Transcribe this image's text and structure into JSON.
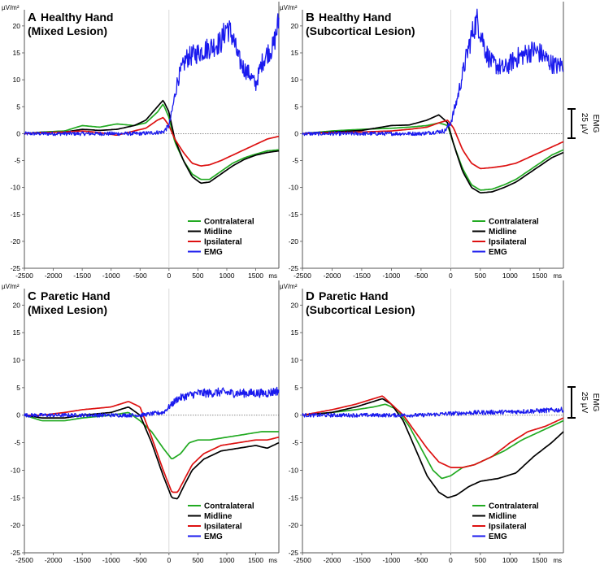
{
  "chart_data": [
    {
      "type": "line",
      "panel": "A",
      "title_line1": "Healthy Hand",
      "title_line2": "(Mixed Lesion)",
      "y_unit": "µV/m²",
      "x_unit": "ms",
      "xlim": [
        -2500,
        1900
      ],
      "ylim": [
        -25,
        23
      ],
      "x_ticks": [
        -2500,
        -2000,
        -1500,
        -1000,
        -500,
        0,
        500,
        1000,
        1500
      ],
      "y_ticks": [
        20,
        15,
        10,
        5,
        0,
        -5,
        -10,
        -15,
        -20,
        -25
      ],
      "series": [
        {
          "name": "Contralateral",
          "color": "#22aa22",
          "x": [
            -2500,
            -2200,
            -1800,
            -1500,
            -1200,
            -900,
            -600,
            -400,
            -200,
            -100,
            0,
            100,
            250,
            400,
            550,
            700,
            900,
            1100,
            1300,
            1500,
            1700,
            1900
          ],
          "y": [
            0,
            0.3,
            0.5,
            1.5,
            1.2,
            1.8,
            1.5,
            2,
            4,
            5.5,
            3,
            -1.5,
            -5,
            -7.5,
            -8.5,
            -8.5,
            -7,
            -5.5,
            -4.5,
            -3.8,
            -3.2,
            -3
          ]
        },
        {
          "name": "Midline",
          "color": "#000000",
          "x": [
            -2500,
            -2200,
            -1800,
            -1500,
            -1200,
            -900,
            -600,
            -400,
            -200,
            -100,
            0,
            100,
            250,
            400,
            550,
            700,
            900,
            1100,
            1300,
            1500,
            1700,
            1900
          ],
          "y": [
            0,
            0.2,
            0.3,
            0.8,
            0.6,
            0.8,
            1.5,
            2.5,
            5,
            6.2,
            4,
            -1,
            -5,
            -8,
            -9.2,
            -9,
            -7.5,
            -6,
            -4.8,
            -4,
            -3.5,
            -3.2
          ]
        },
        {
          "name": "Ipsilateral",
          "color": "#dd1111",
          "x": [
            -2500,
            -2200,
            -1800,
            -1500,
            -1200,
            -900,
            -600,
            -400,
            -200,
            -100,
            0,
            100,
            250,
            400,
            550,
            700,
            900,
            1100,
            1300,
            1500,
            1700,
            1900
          ],
          "y": [
            0,
            0.2,
            0.3,
            0.5,
            0.2,
            -0.3,
            0.5,
            1,
            2.5,
            3,
            1.5,
            -1,
            -3.5,
            -5.5,
            -6,
            -5.8,
            -5,
            -4,
            -3,
            -2,
            -1,
            -0.5
          ]
        },
        {
          "name": "EMG",
          "color": "#1a1aee",
          "x": [
            -2500,
            -1500,
            -500,
            -100,
            0,
            50,
            150,
            300,
            500,
            700,
            900,
            1000,
            1100,
            1200,
            1300,
            1400,
            1500,
            1600,
            1700,
            1800,
            1900
          ],
          "y": [
            0,
            0,
            0,
            0.3,
            1.5,
            4,
            10,
            14,
            15,
            16,
            17,
            20,
            18,
            14,
            12,
            11,
            9,
            13,
            15,
            16,
            21
          ]
        }
      ],
      "legend": [
        "Contralateral",
        "Midline",
        "Ipsilateral",
        "EMG"
      ],
      "legend_position": "bottom-right",
      "emg_scale": {
        "label_top": "EMG",
        "label_bottom": "25 µV"
      }
    },
    {
      "type": "line",
      "panel": "B",
      "title_line1": "Healthy Hand",
      "title_line2": "(Subcortical Lesion)",
      "y_unit": "µV/m²",
      "x_unit": "ms",
      "xlim": [
        -2500,
        1900
      ],
      "ylim": [
        -25,
        23
      ],
      "x_ticks": [
        -2500,
        -2000,
        -1500,
        -1000,
        -500,
        0,
        500,
        1000,
        1500
      ],
      "y_ticks": [
        20,
        15,
        10,
        5,
        0,
        -5,
        -10,
        -15,
        -20,
        -25
      ],
      "series": [
        {
          "name": "Contralateral",
          "color": "#22aa22",
          "x": [
            -2500,
            -2000,
            -1500,
            -1000,
            -700,
            -400,
            -200,
            -50,
            50,
            200,
            350,
            500,
            700,
            900,
            1100,
            1300,
            1500,
            1700,
            1900
          ],
          "y": [
            0,
            0.5,
            0.8,
            1,
            1.2,
            1.5,
            2,
            1.5,
            -2,
            -6.5,
            -9.5,
            -10.5,
            -10.3,
            -9.5,
            -8.5,
            -7,
            -5.5,
            -4,
            -3
          ]
        },
        {
          "name": "Midline",
          "color": "#000000",
          "x": [
            -2500,
            -2000,
            -1500,
            -1000,
            -700,
            -400,
            -200,
            -50,
            50,
            200,
            350,
            500,
            700,
            900,
            1100,
            1300,
            1500,
            1700,
            1900
          ],
          "y": [
            0,
            0.3,
            0.6,
            1.5,
            1.6,
            2.5,
            3.5,
            2,
            -2,
            -7,
            -10,
            -11,
            -10.8,
            -10,
            -9,
            -7.5,
            -6,
            -4.5,
            -3.5
          ]
        },
        {
          "name": "Ipsilateral",
          "color": "#dd1111",
          "x": [
            -2500,
            -2000,
            -1500,
            -1000,
            -700,
            -400,
            -200,
            -50,
            50,
            200,
            350,
            500,
            700,
            900,
            1100,
            1300,
            1500,
            1700,
            1900
          ],
          "y": [
            0,
            0.2,
            0.3,
            0.5,
            0.8,
            1.2,
            2,
            2.5,
            1,
            -3,
            -5.5,
            -6.5,
            -6.3,
            -6,
            -5.5,
            -4.5,
            -3.5,
            -2.5,
            -1.5
          ]
        },
        {
          "name": "EMG",
          "color": "#1a1aee",
          "x": [
            -2500,
            -1500,
            -500,
            -100,
            0,
            100,
            200,
            300,
            400,
            450,
            500,
            600,
            700,
            800,
            900,
            1000,
            1100,
            1200,
            1300,
            1400,
            1500,
            1600,
            1700,
            1800,
            1900
          ],
          "y": [
            0,
            0,
            0,
            0.5,
            2,
            6,
            11,
            16,
            20,
            21,
            19,
            15,
            13,
            12.5,
            12,
            13,
            14,
            14.5,
            15,
            15.5,
            15,
            14,
            13,
            12.5,
            13
          ]
        }
      ],
      "legend": [
        "Contralateral",
        "Midline",
        "Ipsilateral",
        "EMG"
      ],
      "legend_position": "bottom-right",
      "emg_scale": {
        "label_top": "EMG",
        "label_bottom": "25 µV"
      }
    },
    {
      "type": "line",
      "panel": "C",
      "title_line1": "Paretic Hand",
      "title_line2": "(Mixed Lesion)",
      "y_unit": "µV/m²",
      "x_unit": "ms",
      "xlim": [
        -2500,
        1900
      ],
      "ylim": [
        -25,
        23
      ],
      "x_ticks": [
        -2500,
        -2000,
        -1500,
        -1000,
        -500,
        0,
        500,
        1000,
        1500
      ],
      "y_ticks": [
        20,
        15,
        10,
        5,
        0,
        -5,
        -10,
        -15,
        -20,
        -25
      ],
      "series": [
        {
          "name": "Contralateral",
          "color": "#22aa22",
          "x": [
            -2500,
            -2200,
            -1800,
            -1500,
            -1000,
            -700,
            -500,
            -300,
            -100,
            50,
            200,
            350,
            500,
            700,
            1000,
            1300,
            1600,
            1900
          ],
          "y": [
            0,
            -1,
            -1,
            -0.5,
            0,
            0.5,
            -1,
            -3,
            -6,
            -8,
            -7,
            -5,
            -4.5,
            -4.5,
            -4,
            -3.5,
            -3,
            -3
          ]
        },
        {
          "name": "Midline",
          "color": "#000000",
          "x": [
            -2500,
            -2200,
            -1800,
            -1500,
            -1000,
            -700,
            -500,
            -300,
            -100,
            50,
            150,
            250,
            400,
            600,
            900,
            1200,
            1500,
            1700,
            1900
          ],
          "y": [
            0,
            -0.5,
            -0.5,
            0,
            0.5,
            1.5,
            0,
            -5,
            -11,
            -15,
            -15.2,
            -13,
            -10,
            -8,
            -6.5,
            -6,
            -5.5,
            -6,
            -5
          ]
        },
        {
          "name": "Ipsilateral",
          "color": "#dd1111",
          "x": [
            -2500,
            -2200,
            -1800,
            -1500,
            -1000,
            -700,
            -500,
            -300,
            -100,
            50,
            150,
            250,
            400,
            600,
            900,
            1200,
            1500,
            1700,
            1900
          ],
          "y": [
            0,
            0,
            0.5,
            1,
            1.5,
            2.5,
            1.5,
            -4,
            -10,
            -14,
            -14,
            -12,
            -9,
            -7,
            -5.5,
            -5,
            -4.5,
            -4.5,
            -4
          ]
        },
        {
          "name": "EMG",
          "color": "#1a1aee",
          "x": [
            -2500,
            -1500,
            -500,
            -100,
            0,
            150,
            300,
            500,
            700,
            900,
            1100,
            1300,
            1500,
            1700,
            1900
          ],
          "y": [
            0,
            0,
            0,
            0.5,
            1.5,
            3,
            3.5,
            4,
            4,
            4.2,
            4,
            4,
            4,
            4,
            4.5
          ]
        }
      ],
      "legend": [
        "Contralateral",
        "Midline",
        "Ipsilateral",
        "EMG"
      ],
      "legend_position": "bottom-right"
    },
    {
      "type": "line",
      "panel": "D",
      "title_line1": "Paretic Hand",
      "title_line2": "(Subcortical Lesion)",
      "y_unit": "µV/m²",
      "x_unit": "ms",
      "xlim": [
        -2500,
        1900
      ],
      "ylim": [
        -25,
        23
      ],
      "x_ticks": [
        -2500,
        -2000,
        -1500,
        -1000,
        -500,
        0,
        500,
        1000,
        1500
      ],
      "y_ticks": [
        20,
        15,
        10,
        5,
        0,
        -5,
        -10,
        -15,
        -20,
        -25
      ],
      "series": [
        {
          "name": "Contralateral",
          "color": "#22aa22",
          "x": [
            -2500,
            -2000,
            -1600,
            -1300,
            -1100,
            -900,
            -700,
            -500,
            -300,
            -150,
            0,
            200,
            400,
            600,
            900,
            1200,
            1500,
            1900
          ],
          "y": [
            0,
            0.5,
            1,
            1.5,
            2,
            1,
            -2,
            -6,
            -10,
            -11.5,
            -11,
            -9.5,
            -9,
            -8,
            -6.5,
            -4.5,
            -3,
            -1
          ]
        },
        {
          "name": "Midline",
          "color": "#000000",
          "x": [
            -2500,
            -2000,
            -1600,
            -1300,
            -1150,
            -1000,
            -800,
            -600,
            -400,
            -200,
            -50,
            100,
            300,
            500,
            800,
            1100,
            1400,
            1700,
            1900
          ],
          "y": [
            0,
            0.5,
            1.5,
            2.5,
            3,
            2,
            -1,
            -6,
            -11,
            -14,
            -15,
            -14.5,
            -13,
            -12,
            -11.5,
            -10.5,
            -7.5,
            -5,
            -3
          ]
        },
        {
          "name": "Ipsilateral",
          "color": "#dd1111",
          "x": [
            -2500,
            -2000,
            -1600,
            -1300,
            -1150,
            -1000,
            -800,
            -600,
            -400,
            -200,
            0,
            200,
            400,
            700,
            1000,
            1300,
            1600,
            1900
          ],
          "y": [
            0,
            1,
            2,
            3,
            3.5,
            2,
            0,
            -3,
            -6,
            -8.5,
            -9.5,
            -9.5,
            -9,
            -7.5,
            -5,
            -3,
            -2,
            -0.5
          ]
        },
        {
          "name": "EMG",
          "color": "#1a1aee",
          "x": [
            -2500,
            -1500,
            -500,
            0,
            500,
            1000,
            1500,
            1900
          ],
          "y": [
            0,
            0,
            0,
            0.3,
            0.5,
            0.6,
            0.8,
            1
          ]
        }
      ],
      "legend": [
        "Contralateral",
        "Midline",
        "Ipsilateral",
        "EMG"
      ],
      "legend_position": "bottom-right",
      "emg_scale": {
        "label_top": "EMG",
        "label_bottom": "25 µV"
      }
    }
  ]
}
